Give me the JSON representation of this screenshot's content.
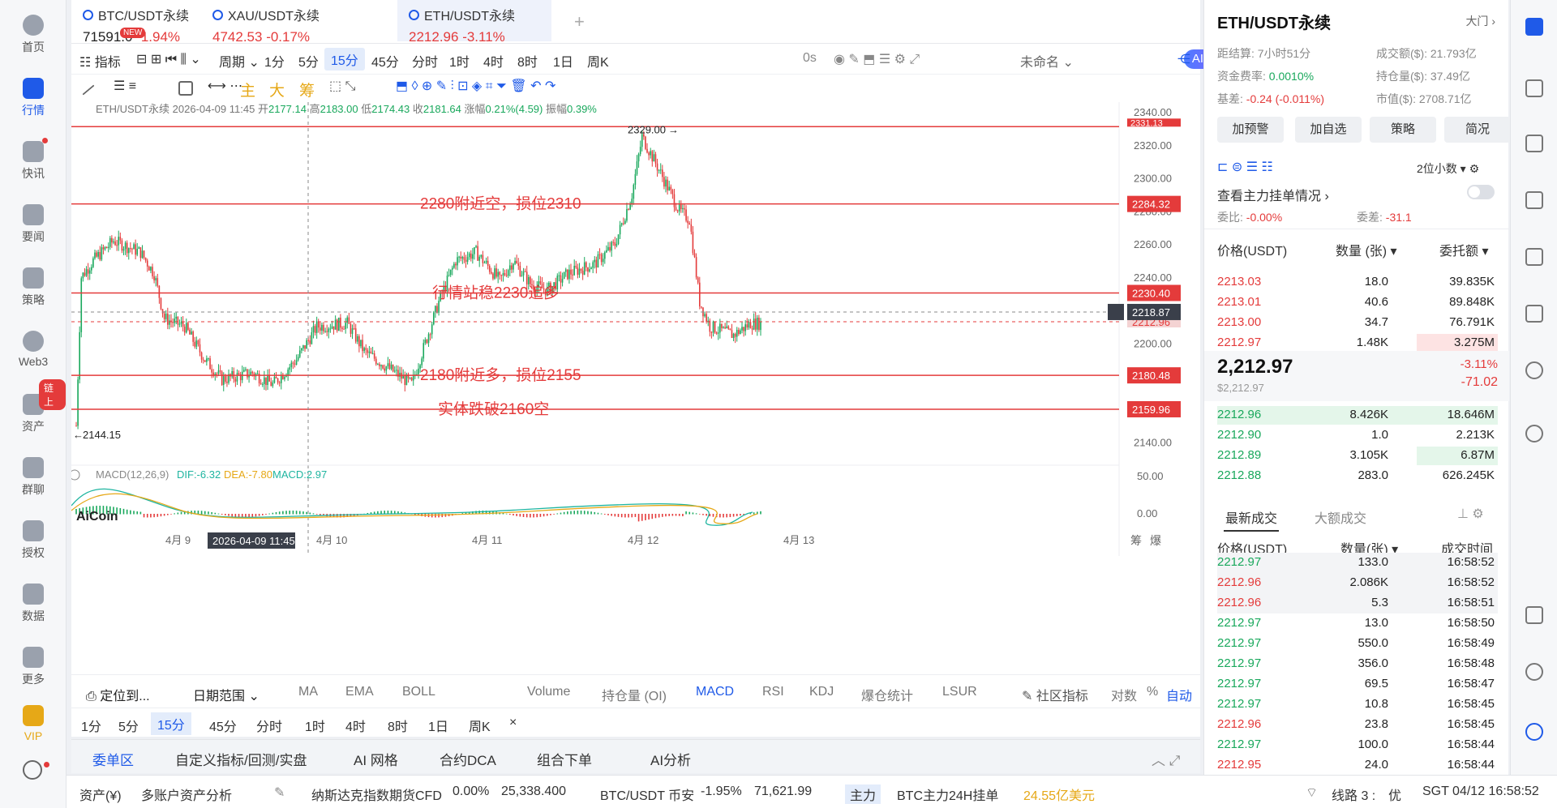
{
  "nav": [
    {
      "label": "首页",
      "icon": "home-icon"
    },
    {
      "label": "行情",
      "icon": "chart-bars-icon"
    },
    {
      "label": "快讯",
      "icon": "flash-news-icon"
    },
    {
      "label": "要闻",
      "icon": "news-icon"
    },
    {
      "label": "策略",
      "icon": "robot-icon"
    },
    {
      "label": "Web3",
      "icon": "web3-icon"
    },
    {
      "label": "资产",
      "icon": "wallet-icon"
    },
    {
      "label": "群聊",
      "icon": "chat-icon"
    },
    {
      "label": "授权",
      "icon": "key-icon"
    },
    {
      "label": "数据",
      "icon": "data-icon"
    },
    {
      "label": "更多",
      "icon": "grid-icon"
    },
    {
      "label": "VIP",
      "icon": "vip-icon"
    }
  ],
  "nav_chain_badge": "链上",
  "tabs": [
    {
      "name": "BTC/USDT永续",
      "price": "71591.0",
      "change": "-1.94%"
    },
    {
      "name": "XAU/USDT永续",
      "price": "4742.53",
      "change": "-0.17%"
    },
    {
      "name": "ETH/USDT永续",
      "price": "2212.96",
      "change": "-3.11%"
    }
  ],
  "new_badge": "NEW",
  "toolbar": {
    "indicator": "指标",
    "period": "周期",
    "intervals": [
      "1分",
      "5分",
      "15分",
      "45分",
      "分时",
      "1时",
      "4时",
      "8时",
      "1日",
      "周K"
    ],
    "selected_interval": "15分",
    "zero_s": "0s",
    "layout": "未命名",
    "ai": "AI解读"
  },
  "indicators_row": [
    "主",
    "大",
    "筹"
  ],
  "ohlc": {
    "symbol": "ETH/USDT永续",
    "time": "2026-04-09 11:45",
    "open_label": "开",
    "open": "2177.14",
    "high_label": "高",
    "high": "2183.00",
    "low_label": "低",
    "low": "2174.43",
    "close_label": "收",
    "close": "2181.64",
    "chg_label": "涨幅",
    "chg": "0.21%(4.59)",
    "amp_label": "振幅",
    "amp": "0.39%"
  },
  "chart_data": {
    "type": "candlestick",
    "symbol": "ETH/USDT永续",
    "y_ticks": [
      "2340.00",
      "2320.00",
      "2300.00",
      "2280.00",
      "2260.00",
      "2240.00",
      "2220.00",
      "2200.00",
      "2180.00",
      "2160.00",
      "2140.00"
    ],
    "ylim": [
      2130,
      2346
    ],
    "x_labels": [
      "4月 9",
      "4月 10",
      "4月 11",
      "4月 12",
      "4月 13"
    ],
    "crosshair_time": "2026-04-09 11:45",
    "high_marker": "2329.00",
    "low_marker": "2144.15",
    "current_price": "2212.96",
    "crosshair_price": "2218.87",
    "top_level": "2331.13",
    "levels": [
      {
        "price": "2284.32",
        "note": "2280附近空，损位2310"
      },
      {
        "price": "2230.40",
        "note": "行情站稳2230追多"
      },
      {
        "price": "2180.48",
        "note": "2180附近多，损位2155"
      },
      {
        "price": "2159.96",
        "note": "实体跌破2160空"
      }
    ],
    "macd_label": "MACD(12,26,9)",
    "dif": "DIF:-6.32",
    "dea": "DEA:-7.80",
    "macd": "MACD:2.97",
    "macd_ticks": [
      "50.00",
      "0.00"
    ],
    "watermark": "AiCoin",
    "right_labels": [
      "筹",
      "爆"
    ]
  },
  "bottom_bar1": {
    "locate": "定位到...",
    "range": "日期范围",
    "indicators": [
      "MA",
      "EMA",
      "BOLL",
      "Volume",
      "持仓量 (OI)",
      "MACD",
      "RSI",
      "KDJ",
      "爆仓统计",
      "LSUR"
    ],
    "active": "MACD",
    "community": "社区指标",
    "log": "对数",
    "pct": "%",
    "auto": "自动"
  },
  "bottom_bar2": [
    "1分",
    "5分",
    "15分",
    "45分",
    "分时",
    "1时",
    "4时",
    "8时",
    "1日",
    "周K"
  ],
  "bottom_bar2_close": "×",
  "order_tabs": [
    "委单区",
    "自定义指标/回测/实盘",
    "AI 网格",
    "合约DCA",
    "组合下单",
    "AI分析"
  ],
  "status": {
    "asset": "资产(¥)",
    "multi": "多账户资产分析",
    "nasdaq": "纳斯达克指数期货CFD",
    "nasdaq_pct": "0.00%",
    "nasdaq_val": "25,338.400",
    "btc": "BTC/USDT 币安",
    "btc_pct": "-1.95%",
    "btc_val": "71,621.99",
    "main": "主力",
    "btc24": "BTC主力24H挂单",
    "btc24_val": "24.55亿美元",
    "line": "线路 3 :",
    "line_q": "优",
    "clock": "SGT 04/12 16:58:52"
  },
  "right": {
    "title": "ETH/USDT永续",
    "gate": "大门",
    "settle_label": "距结算:",
    "settle": "7小时51分",
    "turnover_label": "成交额($):",
    "turnover": "21.793亿",
    "fund_label": "资金费率:",
    "fund": "0.0010%",
    "oi_label": "持仓量($):",
    "oi": "37.49亿",
    "basis_label": "基差:",
    "basis": "-0.24 (-0.011%)",
    "mcap_label": "市值($):",
    "mcap": "2708.71亿",
    "buttons": [
      "加预警",
      "加自选",
      "策略",
      "简况"
    ],
    "decimals": "2位小数",
    "view_orders": "查看主力挂单情况",
    "ratio_label": "委比:",
    "ratio": "-0.00%",
    "diff_label": "委差:",
    "diff": "-31.1",
    "ob_headers": [
      "价格(USDT)",
      "数量 (张)",
      "委托额"
    ],
    "asks": [
      {
        "p": "2213.03",
        "q": "18.0",
        "a": "39.835K"
      },
      {
        "p": "2213.01",
        "q": "40.6",
        "a": "89.848K"
      },
      {
        "p": "2213.00",
        "q": "34.7",
        "a": "76.791K"
      },
      {
        "p": "2212.97",
        "q": "1.48K",
        "a": "3.275M"
      }
    ],
    "last": "2,212.97",
    "last_usd": "$2,212.97",
    "last_pct": "-3.11%",
    "last_chg": "-71.02",
    "bids": [
      {
        "p": "2212.96",
        "q": "8.426K",
        "a": "18.646M"
      },
      {
        "p": "2212.90",
        "q": "1.0",
        "a": "2.213K"
      },
      {
        "p": "2212.89",
        "q": "3.105K",
        "a": "6.87M"
      },
      {
        "p": "2212.88",
        "q": "283.0",
        "a": "626.245K"
      }
    ],
    "trade_tabs": [
      "最新成交",
      "大额成交"
    ],
    "trade_headers": [
      "价格(USDT)",
      "数量(张)",
      "成交时间"
    ],
    "trades": [
      {
        "p": "2212.97",
        "q": "133.0",
        "t": "16:58:52",
        "side": "buy"
      },
      {
        "p": "2212.96",
        "q": "2.086K",
        "t": "16:58:52",
        "side": "sell"
      },
      {
        "p": "2212.96",
        "q": "5.3",
        "t": "16:58:51",
        "side": "sell"
      },
      {
        "p": "2212.97",
        "q": "13.0",
        "t": "16:58:50",
        "side": "buy"
      },
      {
        "p": "2212.97",
        "q": "550.0",
        "t": "16:58:49",
        "side": "buy"
      },
      {
        "p": "2212.97",
        "q": "356.0",
        "t": "16:58:48",
        "side": "buy"
      },
      {
        "p": "2212.97",
        "q": "69.5",
        "t": "16:58:47",
        "side": "buy"
      },
      {
        "p": "2212.97",
        "q": "10.8",
        "t": "16:58:45",
        "side": "buy"
      },
      {
        "p": "2212.96",
        "q": "23.8",
        "t": "16:58:45",
        "side": "sell"
      },
      {
        "p": "2212.97",
        "q": "100.0",
        "t": "16:58:44",
        "side": "buy"
      },
      {
        "p": "2212.95",
        "q": "24.0",
        "t": "16:58:44",
        "side": "sell"
      }
    ]
  }
}
